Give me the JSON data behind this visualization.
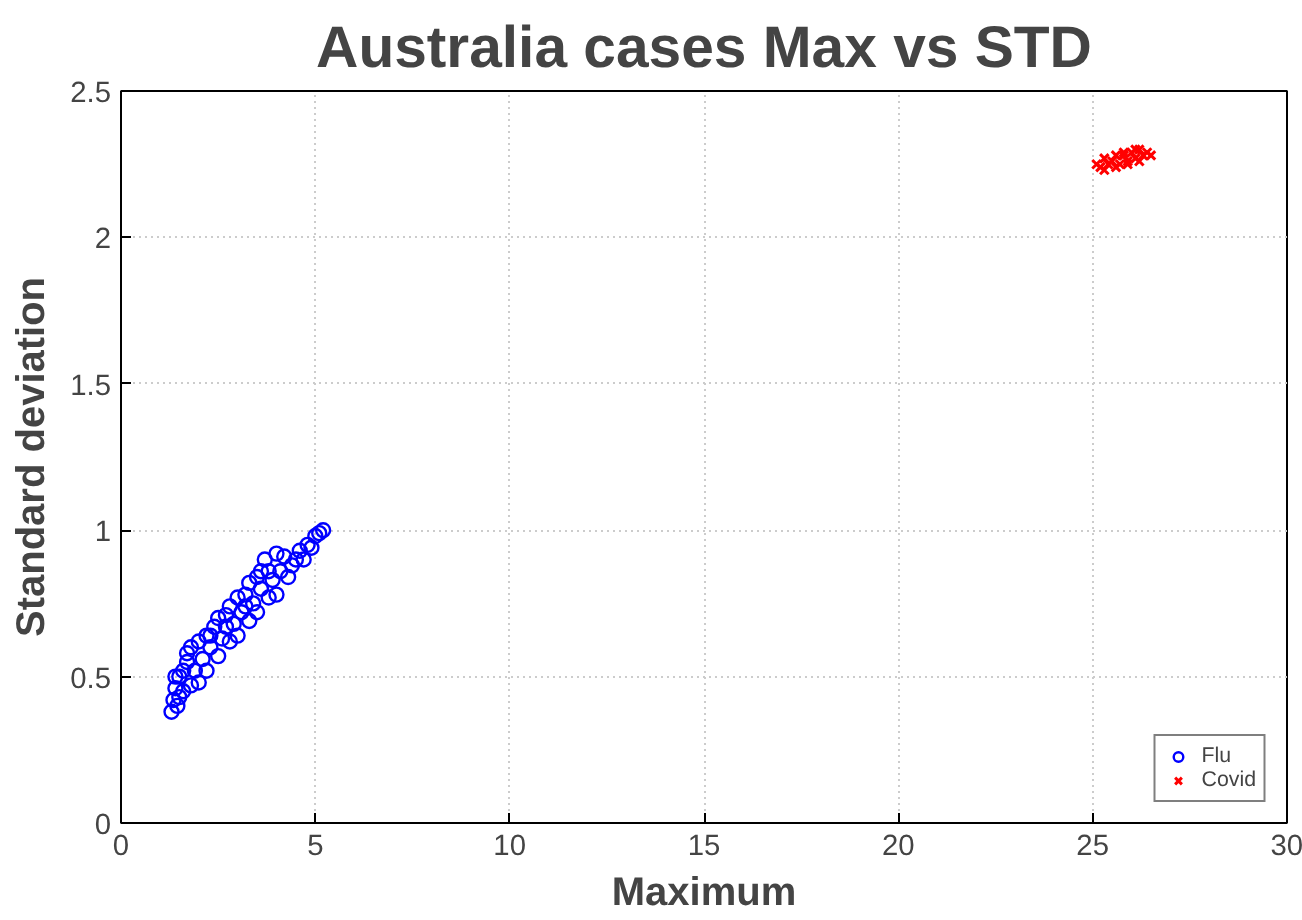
{
  "chart_data": {
    "type": "scatter",
    "title": "Australia cases Max vs STD",
    "xlabel": "Maximum",
    "ylabel": "Standard deviation",
    "xlim": [
      0,
      30
    ],
    "ylim": [
      0,
      2.5
    ],
    "xticks": [
      0,
      5,
      10,
      15,
      20,
      25,
      30
    ],
    "yticks": [
      0,
      0.5,
      1,
      1.5,
      2,
      2.5
    ],
    "grid": true,
    "legend": "bottom right",
    "series": [
      {
        "name": "Flu",
        "color": "#0000ff",
        "marker": "circle",
        "x": [
          1.3,
          1.35,
          1.4,
          1.45,
          1.5,
          1.5,
          1.6,
          1.6,
          1.7,
          1.8,
          1.8,
          1.9,
          2.0,
          2.0,
          2.1,
          2.2,
          2.2,
          2.3,
          2.4,
          2.5,
          2.5,
          2.6,
          2.7,
          2.8,
          2.8,
          2.9,
          3.0,
          3.0,
          3.1,
          3.2,
          3.3,
          3.3,
          3.4,
          3.5,
          3.5,
          3.6,
          3.7,
          3.8,
          3.8,
          3.9,
          4.0,
          4.0,
          4.1,
          4.2,
          4.3,
          4.4,
          4.5,
          4.6,
          4.7,
          4.8,
          4.9,
          5.0,
          5.1,
          5.2,
          1.4,
          1.7,
          2.3,
          2.7,
          3.2,
          3.6
        ],
        "values": [
          0.38,
          0.42,
          0.46,
          0.4,
          0.5,
          0.43,
          0.52,
          0.45,
          0.55,
          0.47,
          0.6,
          0.52,
          0.62,
          0.48,
          0.56,
          0.64,
          0.52,
          0.6,
          0.67,
          0.57,
          0.7,
          0.63,
          0.71,
          0.62,
          0.74,
          0.68,
          0.77,
          0.64,
          0.72,
          0.78,
          0.69,
          0.82,
          0.75,
          0.84,
          0.72,
          0.8,
          0.9,
          0.77,
          0.86,
          0.83,
          0.92,
          0.78,
          0.86,
          0.91,
          0.84,
          0.88,
          0.9,
          0.93,
          0.9,
          0.95,
          0.94,
          0.98,
          0.99,
          1.0,
          0.5,
          0.58,
          0.64,
          0.67,
          0.74,
          0.86
        ]
      },
      {
        "name": "Covid",
        "color": "#ff0000",
        "marker": "cross",
        "x": [
          25.1,
          25.2,
          25.3,
          25.4,
          25.5,
          25.6,
          25.7,
          25.8,
          25.9,
          26.0,
          26.1,
          26.2,
          26.3,
          26.4,
          26.5,
          25.3,
          25.6,
          25.9,
          26.2,
          25.8,
          26.1
        ],
        "values": [
          2.25,
          2.24,
          2.27,
          2.25,
          2.26,
          2.28,
          2.25,
          2.28,
          2.26,
          2.29,
          2.27,
          2.3,
          2.28,
          2.29,
          2.28,
          2.23,
          2.24,
          2.25,
          2.26,
          2.29,
          2.3
        ]
      }
    ]
  }
}
